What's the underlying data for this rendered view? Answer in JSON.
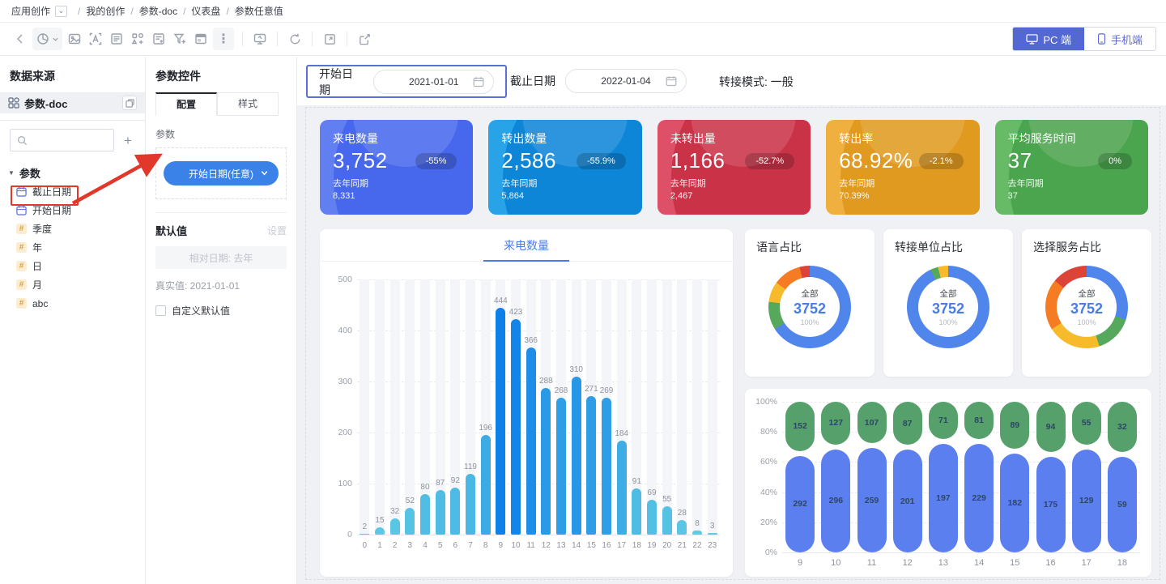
{
  "breadcrumb": {
    "root": "应用创作",
    "items": [
      "我的创作",
      "参数-doc",
      "仪表盘",
      "参数任意值"
    ]
  },
  "toolbar": {
    "pc_label": "PC 端",
    "mobile_label": "手机端"
  },
  "left_panel": {
    "title": "数据来源",
    "dataset": "参数-doc",
    "search_placeholder": "",
    "group_label": "参数",
    "items": [
      {
        "label": "截止日期",
        "icon": "calendar"
      },
      {
        "label": "开始日期",
        "icon": "calendar",
        "highlighted": true
      },
      {
        "label": "季度",
        "icon": "number"
      },
      {
        "label": "年",
        "icon": "number"
      },
      {
        "label": "日",
        "icon": "number"
      },
      {
        "label": "月",
        "icon": "number"
      },
      {
        "label": "abc",
        "icon": "number"
      }
    ]
  },
  "param_panel": {
    "title": "参数控件",
    "tabs": [
      "配置",
      "样式"
    ],
    "param_label": "参数",
    "param_button": "开始日期(任意)",
    "default_label": "默认值",
    "settings_label": "设置",
    "default_value": "相对日期: 去年",
    "real_value": "真实值: 2021-01-01",
    "checkbox_label": "自定义默认值"
  },
  "filter_bar": {
    "start_label": "开始日期",
    "start_value": "2021-01-01",
    "end_label": "截止日期",
    "end_value": "2022-01-04",
    "mode_text": "转接模式: 一般"
  },
  "kpi_cards": [
    {
      "title": "来电数量",
      "value": "3,752",
      "delta": "-55%",
      "prev_label": "去年同期",
      "prev_value": "8,331",
      "c1": "#617FF0",
      "c2": "#4768ED"
    },
    {
      "title": "转出数量",
      "value": "2,586",
      "delta": "-55.9%",
      "prev_label": "去年同期",
      "prev_value": "5,864",
      "c1": "#29A3E8",
      "c2": "#0D86D8"
    },
    {
      "title": "未转出量",
      "value": "1,166",
      "delta": "-52.7%",
      "prev_label": "去年同期",
      "prev_value": "2,467",
      "c1": "#DE5068",
      "c2": "#C93247"
    },
    {
      "title": "转出率",
      "value": "68.92%",
      "delta": "-2.1%",
      "prev_label": "去年同期",
      "prev_value": "70.39%",
      "c1": "#F0B040",
      "c2": "#E09A20"
    },
    {
      "title": "平均服务时间",
      "value": "37",
      "delta": "0%",
      "prev_label": "去年同期",
      "prev_value": "37",
      "c1": "#67BB66",
      "c2": "#4BA44E"
    }
  ],
  "chart_data": [
    {
      "type": "bar",
      "title": "来电数量",
      "x": [
        "0",
        "1",
        "2",
        "3",
        "4",
        "5",
        "6",
        "7",
        "8",
        "9",
        "10",
        "11",
        "12",
        "13",
        "14",
        "15",
        "16",
        "17",
        "18",
        "19",
        "20",
        "21",
        "22",
        "23"
      ],
      "values": [
        2,
        15,
        32,
        52,
        80,
        87,
        92,
        119,
        196,
        444,
        423,
        366,
        288,
        268,
        310,
        271,
        269,
        184,
        91,
        69,
        55,
        28,
        8,
        3
      ],
      "ylim": [
        0,
        500
      ],
      "yticks": [
        0,
        100,
        200,
        300,
        400,
        500
      ],
      "bar_color_low": "#5FCBE3",
      "bar_color_high": "#0F80E8",
      "grid": "dashed"
    },
    {
      "type": "pie",
      "title": "语言占比",
      "center_label": "全部",
      "center_value": "3752",
      "center_percent": "100%",
      "slices": [
        {
          "name": "blue",
          "pct": 66,
          "color": "#5086EC"
        },
        {
          "name": "green",
          "pct": 11,
          "color": "#55A85C"
        },
        {
          "name": "yellow",
          "pct": 8,
          "color": "#F7BA2A"
        },
        {
          "name": "orange",
          "pct": 11,
          "color": "#F57C22"
        },
        {
          "name": "red",
          "pct": 4,
          "color": "#DB4437"
        }
      ]
    },
    {
      "type": "pie",
      "title": "转接单位占比",
      "center_label": "全部",
      "center_value": "3752",
      "center_percent": "100%",
      "slices": [
        {
          "name": "blue",
          "pct": 93,
          "color": "#5086EC"
        },
        {
          "name": "green",
          "pct": 3,
          "color": "#55A85C"
        },
        {
          "name": "yellow",
          "pct": 4,
          "color": "#F7BA2A"
        }
      ]
    },
    {
      "type": "pie",
      "title": "选择服务占比",
      "center_label": "全部",
      "center_value": "3752",
      "center_percent": "100%",
      "slices": [
        {
          "name": "blue",
          "pct": 30,
          "color": "#5086EC"
        },
        {
          "name": "green",
          "pct": 15,
          "color": "#55A85C"
        },
        {
          "name": "yellow",
          "pct": 21,
          "color": "#F7BA2A"
        },
        {
          "name": "orange",
          "pct": 20,
          "color": "#F57C22"
        },
        {
          "name": "red",
          "pct": 14,
          "color": "#DB4437"
        }
      ]
    },
    {
      "type": "bar",
      "stacked": true,
      "percent_axis": true,
      "x": [
        "9",
        "10",
        "11",
        "12",
        "13",
        "14",
        "15",
        "16",
        "17",
        "18"
      ],
      "series": [
        {
          "name": "bottom-blue",
          "color": "#5C7FF0",
          "values": [
            292,
            296,
            259,
            201,
            197,
            229,
            182,
            175,
            129,
            59
          ]
        },
        {
          "name": "top-green",
          "color": "#55A06B",
          "values": [
            152,
            127,
            107,
            87,
            71,
            81,
            89,
            94,
            55,
            32
          ]
        }
      ],
      "yticks": [
        "0%",
        "20%",
        "40%",
        "60%",
        "80%",
        "100%"
      ],
      "grid": "dashed"
    }
  ]
}
